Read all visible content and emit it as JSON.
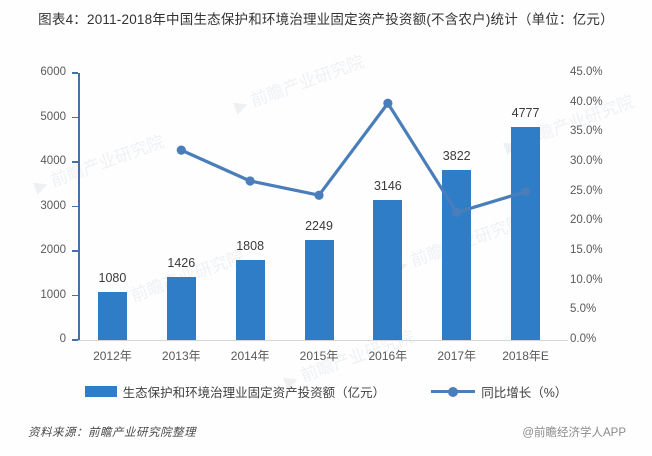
{
  "title": "图表4：2011-2018年中国生态保护和环境治理业固定资产投资额(不含农户)统计（单位：亿元）",
  "chart_data": {
    "type": "bar+line",
    "categories": [
      "2012年",
      "2013年",
      "2014年",
      "2015年",
      "2016年",
      "2017年",
      "2018年E"
    ],
    "series": [
      {
        "name": "生态保护和环境治理业固定资产投资额（亿元）",
        "type": "bar",
        "axis": "left",
        "values": [
          1080,
          1426,
          1808,
          2249,
          3146,
          3822,
          4777
        ],
        "data_labels": [
          "1080",
          "1426",
          "1808",
          "2249",
          "3146",
          "3822",
          "4777"
        ],
        "color": "#2F7CC7"
      },
      {
        "name": "同比增长（%）",
        "type": "line",
        "axis": "right",
        "values": [
          null,
          32.0,
          26.8,
          24.4,
          39.9,
          21.5,
          25.0
        ],
        "color": "#4A7EBB"
      }
    ],
    "left_axis": {
      "min": 0,
      "max": 6000,
      "step": 1000,
      "tick_labels": [
        "0",
        "1000",
        "2000",
        "3000",
        "4000",
        "5000",
        "6000"
      ]
    },
    "right_axis": {
      "min": 0,
      "max": 45,
      "step": 5,
      "tick_labels": [
        "0.0%",
        "5.0%",
        "10.0%",
        "15.0%",
        "20.0%",
        "25.0%",
        "30.0%",
        "35.0%",
        "40.0%",
        "45.0%"
      ]
    },
    "grid": false,
    "legend_position": "bottom"
  },
  "legend": {
    "bar_label": "生态保护和环境治理业固定资产投资额（亿元）",
    "line_label": "同比增长（%）"
  },
  "footer": {
    "source": "资料来源：前瞻产业研究院整理",
    "credit": "@前瞻经济学人APP"
  },
  "watermark": {
    "text": "前瞻产业研究院"
  },
  "colors": {
    "bar": "#2F7CC7",
    "line": "#4A7EBB",
    "axis": "#4472A8",
    "baseline": "#D6D6D6",
    "tick_text": "#595959",
    "label_text": "#3A3A3A"
  }
}
